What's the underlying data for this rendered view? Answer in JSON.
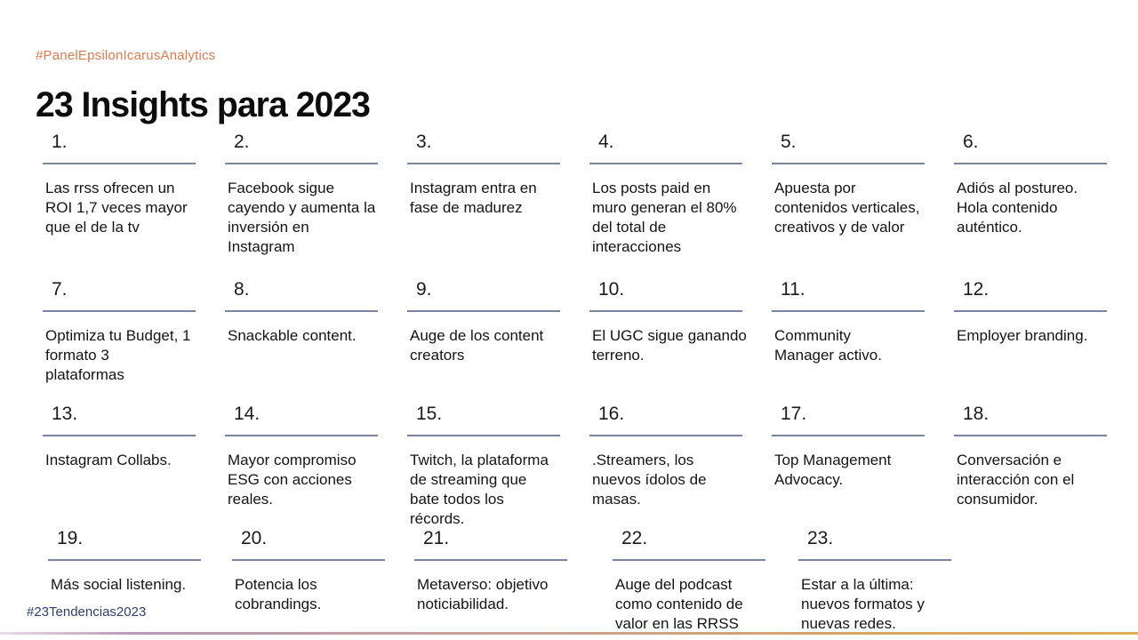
{
  "page": {
    "top_hashtag": "#PanelEpsilonIcarusAnalytics",
    "title": "23 Insights para 2023",
    "bottom_hashtag": "#23Tendencias2023"
  },
  "colors": {
    "top_hashtag": "#dc7a52",
    "bottom_hashtag": "#2c4170",
    "underline": "#78849e",
    "footer_gradient_left": "#bb97b8",
    "footer_gradient_right": "#ddb055"
  },
  "items": [
    {
      "number": "1.",
      "text": "Las rrss ofrecen un\nROI 1,7 veces mayor\nque el de la tv"
    },
    {
      "number": "2.",
      "text": "Facebook sigue\ncayendo y aumenta la\ninversión en\nInstagram"
    },
    {
      "number": "3.",
      "text": "Instagram entra en\nfase de madurez"
    },
    {
      "number": "4.",
      "text": "Los posts paid en\nmuro generan el 80%\ndel total de\ninteracciones"
    },
    {
      "number": "5.",
      "text": "Apuesta por\ncontenidos verticales,\ncreativos y de valor"
    },
    {
      "number": "6.",
      "text": "Adiós al postureo.\nHola contenido\nauténtico."
    },
    {
      "number": "7.",
      "text": "Optimiza tu Budget, 1\nformato 3\nplataformas"
    },
    {
      "number": "8.",
      "text": "Snackable content."
    },
    {
      "number": "9.",
      "text": "Auge de los content\ncreators"
    },
    {
      "number": "10.",
      "text": "El UGC sigue ganando\nterreno."
    },
    {
      "number": "11.",
      "text": "Community\nManager activo."
    },
    {
      "number": "12.",
      "text": "Employer branding."
    },
    {
      "number": "13.",
      "text": "Instagram Collabs."
    },
    {
      "number": "14.",
      "text": "Mayor compromiso\nESG con acciones\nreales."
    },
    {
      "number": "15.",
      "text": "Twitch, la plataforma\nde streaming que\nbate todos los\nrécords."
    },
    {
      "number": "16.",
      "text": ".Streamers, los\nnuevos ídolos de\nmasas."
    },
    {
      "number": "17.",
      "text": "Top Management\nAdvocacy."
    },
    {
      "number": "18.",
      "text": "Conversación e\ninteracción con el\nconsumidor."
    },
    {
      "number": "19.",
      "text": "Más social listening."
    },
    {
      "number": "20.",
      "text": "Potencia los\ncobrandings."
    },
    {
      "number": "21.",
      "text": "Metaverso: objetivo\nnoticiabilidad."
    },
    {
      "number": "22.",
      "text": "Auge del podcast\ncomo contenido de\nvalor en las RRSS"
    },
    {
      "number": "23.",
      "text": "Estar a la última:\nnuevos formatos y\nnuevas redes."
    }
  ]
}
